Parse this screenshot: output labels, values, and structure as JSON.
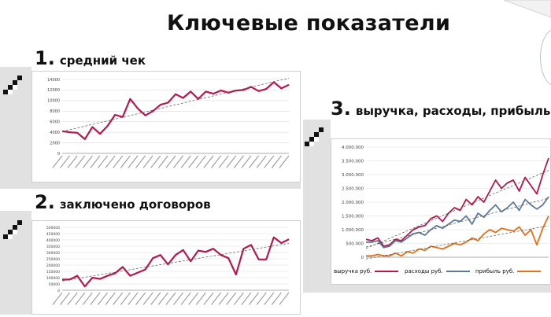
{
  "slide": {
    "title": "Ключевые показатели"
  },
  "sections": [
    {
      "number": "1.",
      "label": "средний чек"
    },
    {
      "number": "2.",
      "label": "заключено договоров"
    },
    {
      "number": "3.",
      "label": "выручка, расходы, прибыль"
    }
  ],
  "colors": {
    "primary": "#b5174e",
    "secondary": "#5f7893",
    "tertiary": "#e0711d",
    "trend": "#555555",
    "band": "#e1e1e1"
  },
  "chart_data": [
    {
      "type": "line",
      "title": "",
      "xlabel": "",
      "ylabel": "",
      "ylim": [
        0,
        14000
      ],
      "yticks": [
        "0",
        "2000",
        "4000",
        "6000",
        "8000",
        "10000",
        "12000",
        "14000"
      ],
      "grid": true,
      "trendline": true,
      "series": [
        {
          "values": [
            4200,
            4000,
            3900,
            2700,
            5000,
            3700,
            5200,
            7300,
            6900,
            10300,
            8500,
            7200,
            8000,
            9200,
            9600,
            11200,
            10500,
            11700,
            10300,
            11700,
            11300,
            11900,
            11500,
            11900,
            12000,
            12600,
            11800,
            12200,
            13500,
            12300,
            13000
          ]
        }
      ]
    },
    {
      "type": "line",
      "title": "",
      "xlabel": "",
      "ylabel": "",
      "ylim": [
        0,
        500000
      ],
      "yticks": [
        "0",
        "50000",
        "100000",
        "150000",
        "200000",
        "250000",
        "300000",
        "350000",
        "400000",
        "450000",
        "500000"
      ],
      "grid": true,
      "trendline": true,
      "series": [
        {
          "values": [
            85000,
            85000,
            115000,
            30000,
            100000,
            90000,
            115000,
            135000,
            185000,
            115000,
            140000,
            165000,
            255000,
            280000,
            205000,
            280000,
            320000,
            230000,
            315000,
            305000,
            330000,
            280000,
            255000,
            125000,
            330000,
            360000,
            245000,
            245000,
            420000,
            375000,
            405000
          ]
        }
      ]
    },
    {
      "type": "line",
      "title": "",
      "xlabel": "",
      "ylabel": "",
      "ylim": [
        0,
        4000000
      ],
      "yticks": [
        "0",
        "500.000",
        "1.000.000",
        "1.500.000",
        "2.000.000",
        "2.500.000",
        "3.000.000",
        "3.500.000",
        "4.000.000"
      ],
      "grid": true,
      "trendline": true,
      "legend": "bottom",
      "series": [
        {
          "name": "выручка руб.",
          "color": "#b5174e",
          "values": [
            650000,
            600000,
            700000,
            400000,
            450000,
            650000,
            600000,
            800000,
            1000000,
            1100000,
            1150000,
            1400000,
            1500000,
            1300000,
            1600000,
            1800000,
            1700000,
            2100000,
            1900000,
            2200000,
            2000000,
            2400000,
            2800000,
            2500000,
            2700000,
            2800000,
            2400000,
            2900000,
            2600000,
            2300000,
            3000000,
            3600000
          ]
        },
        {
          "name": "расходы руб.",
          "color": "#5f7893",
          "values": [
            550000,
            550000,
            600000,
            350000,
            400000,
            600000,
            550000,
            700000,
            850000,
            900000,
            800000,
            1000000,
            1150000,
            1050000,
            1200000,
            1350000,
            1300000,
            1500000,
            1200000,
            1600000,
            1450000,
            1700000,
            1900000,
            1650000,
            1800000,
            2000000,
            1700000,
            2100000,
            1900000,
            1750000,
            1900000,
            2200000
          ]
        },
        {
          "name": "прибыль руб.",
          "color": "#e0711d",
          "values": [
            50000,
            50000,
            100000,
            50000,
            50000,
            150000,
            50000,
            200000,
            150000,
            300000,
            250000,
            400000,
            350000,
            300000,
            400000,
            500000,
            450000,
            550000,
            700000,
            600000,
            850000,
            1000000,
            900000,
            1050000,
            1000000,
            950000,
            1100000,
            800000,
            1000000,
            450000,
            1050000,
            1500000
          ]
        }
      ]
    }
  ]
}
